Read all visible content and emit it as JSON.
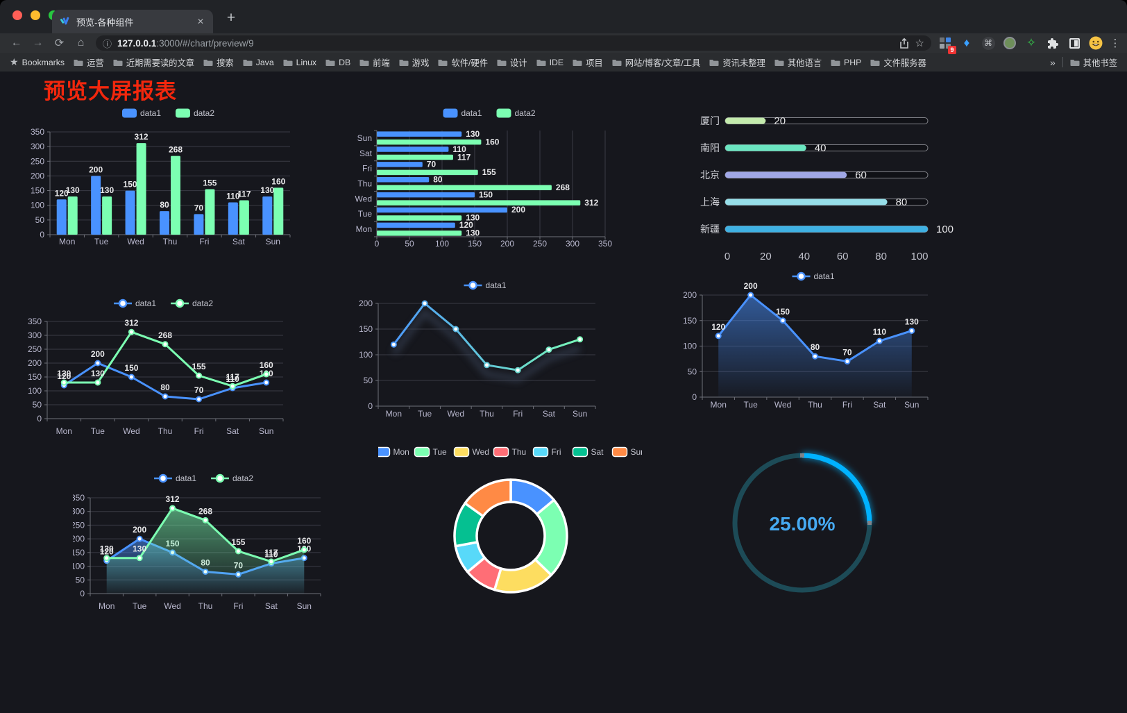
{
  "browser": {
    "traffic_lights": [
      "#ff5f57",
      "#febc2e",
      "#28c840"
    ],
    "tab": {
      "title": "预览-各种组件",
      "close_label": "✕",
      "new_tab_label": "+"
    },
    "toolbar": {
      "back": "←",
      "forward": "→",
      "reload": "⟳",
      "home": "⌂",
      "menu": "⋮"
    },
    "address": {
      "info_icon": "ⓘ",
      "host": "127.0.0.1",
      "path": ":3000/#/chart/preview/9"
    },
    "extensions_badge": "9",
    "bookmarks": {
      "star_label": "Bookmarks",
      "folders": [
        "运营",
        "近期需要读的文章",
        "搜索",
        "Java",
        "Linux",
        "DB",
        "前端",
        "游戏",
        "软件/硬件",
        "设计",
        "IDE",
        "项目",
        "网站/博客/文章/工具",
        "资讯未整理",
        "其他语言",
        "PHP",
        "文件服务器"
      ],
      "overflow": "»",
      "other_label": "其他书签"
    }
  },
  "page": {
    "title": "预览大屏报表",
    "title_color": "#f2270d"
  },
  "chart_data": [
    {
      "id": "grouped-bar",
      "type": "bar",
      "categories": [
        "Mon",
        "Tue",
        "Wed",
        "Thu",
        "Fri",
        "Sat",
        "Sun"
      ],
      "series": [
        {
          "name": "data1",
          "color": "#4992ff",
          "values": [
            120,
            200,
            150,
            80,
            70,
            110,
            130
          ]
        },
        {
          "name": "data2",
          "color": "#7cffb2",
          "values": [
            130,
            130,
            312,
            268,
            155,
            117,
            160
          ]
        }
      ],
      "ylim": [
        0,
        350
      ],
      "yticks": [
        0,
        50,
        100,
        150,
        200,
        250,
        300,
        350
      ],
      "legend_position": "top",
      "value_labels": true,
      "grid": true
    },
    {
      "id": "grouped-bar-horizontal",
      "type": "bar",
      "orientation": "horizontal",
      "categories": [
        "Mon",
        "Tue",
        "Wed",
        "Thu",
        "Fri",
        "Sat",
        "Sun"
      ],
      "series": [
        {
          "name": "data1",
          "color": "#4992ff",
          "values": [
            120,
            200,
            150,
            80,
            70,
            110,
            130
          ]
        },
        {
          "name": "data2",
          "color": "#7cffb2",
          "values": [
            130,
            130,
            312,
            268,
            155,
            117,
            160
          ]
        }
      ],
      "xlim": [
        0,
        350
      ],
      "xticks": [
        0,
        50,
        100,
        150,
        200,
        250,
        300,
        350
      ],
      "legend_position": "top",
      "value_labels": true,
      "grid": true
    },
    {
      "id": "city-progress",
      "type": "bar",
      "orientation": "horizontal-progress",
      "items": [
        {
          "label": "厦门",
          "value": 20,
          "color": "#c4ebad"
        },
        {
          "label": "南阳",
          "value": 40,
          "color": "#6be6c1"
        },
        {
          "label": "北京",
          "value": 60,
          "color": "#a0a7e6"
        },
        {
          "label": "上海",
          "value": 80,
          "color": "#96dee8"
        },
        {
          "label": "新疆",
          "value": 100,
          "color": "#3fb1e3"
        }
      ],
      "xlim": [
        0,
        100
      ],
      "xticks": [
        0,
        20,
        40,
        60,
        80,
        100
      ]
    },
    {
      "id": "two-line",
      "type": "line",
      "categories": [
        "Mon",
        "Tue",
        "Wed",
        "Thu",
        "Fri",
        "Sat",
        "Sun"
      ],
      "series": [
        {
          "name": "data1",
          "color": "#4992ff",
          "values": [
            120,
            200,
            150,
            80,
            70,
            110,
            130
          ]
        },
        {
          "name": "data2",
          "color": "#7cffb2",
          "values": [
            130,
            130,
            312,
            268,
            155,
            117,
            160
          ]
        }
      ],
      "ylim": [
        0,
        350
      ],
      "yticks": [
        0,
        50,
        100,
        150,
        200,
        250,
        300,
        350
      ],
      "legend_position": "top",
      "value_labels": true,
      "grid": true
    },
    {
      "id": "gradient-line",
      "type": "line",
      "categories": [
        "Mon",
        "Tue",
        "Wed",
        "Thu",
        "Fri",
        "Sat",
        "Sun"
      ],
      "series": [
        {
          "name": "data1",
          "gradient_colors": [
            "#4992ff",
            "#7cffb2"
          ],
          "values": [
            120,
            200,
            150,
            80,
            70,
            110,
            130
          ]
        }
      ],
      "ylim": [
        0,
        200
      ],
      "yticks": [
        0,
        50,
        100,
        150,
        200
      ],
      "legend_position": "top",
      "value_labels": false,
      "shadow": true,
      "grid": true
    },
    {
      "id": "area-line",
      "type": "area",
      "categories": [
        "Mon",
        "Tue",
        "Wed",
        "Thu",
        "Fri",
        "Sat",
        "Sun"
      ],
      "series": [
        {
          "name": "data1",
          "color": "#4992ff",
          "values": [
            120,
            200,
            150,
            80,
            70,
            110,
            130
          ]
        }
      ],
      "ylim": [
        0,
        200
      ],
      "yticks": [
        0,
        50,
        100,
        150,
        200
      ],
      "legend_position": "top",
      "value_labels": true,
      "grid": true
    },
    {
      "id": "two-area",
      "type": "area",
      "categories": [
        "Mon",
        "Tue",
        "Wed",
        "Thu",
        "Fri",
        "Sat",
        "Sun"
      ],
      "series": [
        {
          "name": "data1",
          "color": "#4992ff",
          "values": [
            120,
            200,
            150,
            80,
            70,
            110,
            130
          ]
        },
        {
          "name": "data2",
          "color": "#7cffb2",
          "values": [
            130,
            130,
            312,
            268,
            155,
            117,
            160
          ]
        }
      ],
      "ylim": [
        0,
        350
      ],
      "yticks": [
        0,
        50,
        100,
        150,
        200,
        250,
        300,
        350
      ],
      "legend_position": "top",
      "value_labels": true,
      "grid": true
    },
    {
      "id": "week-donut",
      "type": "pie",
      "categories": [
        "Mon",
        "Tue",
        "Wed",
        "Thu",
        "Fri",
        "Sat",
        "Sun"
      ],
      "values": [
        120,
        200,
        150,
        80,
        70,
        110,
        130
      ],
      "colors": [
        "#4992ff",
        "#7cffb2",
        "#fddd60",
        "#ff6e76",
        "#58d9f9",
        "#05c091",
        "#ff8a45"
      ],
      "legend_position": "top",
      "border_color": "#ffffff"
    },
    {
      "id": "percent-gauge",
      "type": "gauge",
      "value": 25,
      "max": 100,
      "display": "25.00%",
      "color": "#00b2ff",
      "track_color": "#1d4b57",
      "text_color": "#46aaf2"
    }
  ]
}
